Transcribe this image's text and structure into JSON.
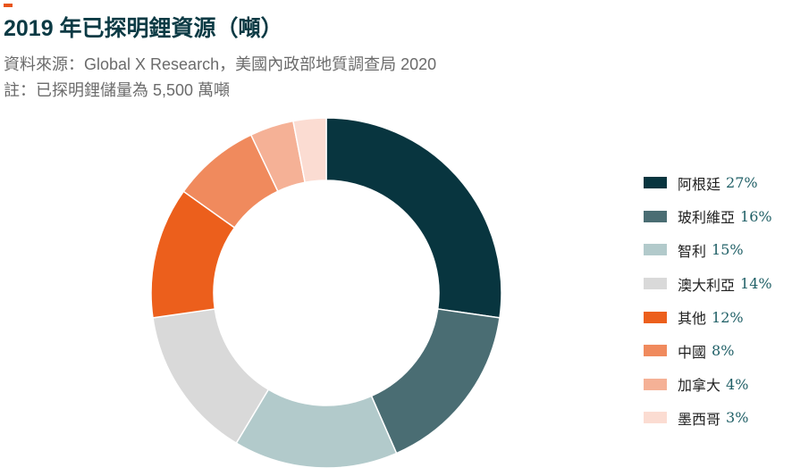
{
  "header": {
    "title": "2019 年已探明鋰資源（噸）",
    "source": "資料來源：Global X Research，美國內政部地質調查局 2020",
    "note": "註：已探明鋰儲量為 5,500 萬噸"
  },
  "colors": {
    "accent": "#e8541a",
    "title": "#0b3a44"
  },
  "chart_data": {
    "type": "pie",
    "title": "2019 年已探明鋰資源（噸）",
    "donut": true,
    "legend_position": "right",
    "categories": [
      "阿根廷",
      "玻利維亞",
      "智利",
      "澳大利亞",
      "其他",
      "中國",
      "加拿大",
      "墨西哥"
    ],
    "values": [
      27,
      16,
      15,
      14,
      12,
      8,
      4,
      3
    ],
    "value_labels": [
      "27%",
      "16%",
      "15%",
      "14%",
      "12%",
      "8%",
      "4%",
      "3%"
    ],
    "colors": [
      "#08353f",
      "#4a6d73",
      "#b2cacb",
      "#d9d9d9",
      "#ec5f1c",
      "#f08a5d",
      "#f5b196",
      "#fbdcd2"
    ]
  }
}
